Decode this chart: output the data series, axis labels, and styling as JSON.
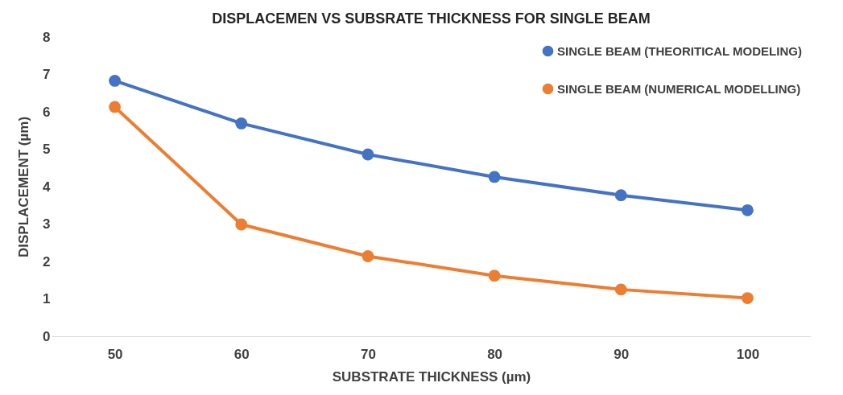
{
  "chart_data": {
    "type": "line",
    "title": "DISPLACEMEN VS SUBSRATE THICKNESS FOR SINGLE BEAM",
    "xlabel": "SUBSTRATE THICKNESS (µm)",
    "ylabel": "DISPLACEMENT (µm)",
    "categories": [
      "50",
      "60",
      "70",
      "80",
      "90",
      "100"
    ],
    "series": [
      {
        "name": "SINGLE BEAM (THEORITICAL MODELING)",
        "color": "#4472c4",
        "values": [
          6.83,
          5.69,
          4.86,
          4.26,
          3.77,
          3.37
        ]
      },
      {
        "name": "SINGLE BEAM (NUMERICAL MODELLING)",
        "color": "#ed7d31",
        "values": [
          6.13,
          2.99,
          2.14,
          1.62,
          1.25,
          1.02
        ]
      }
    ],
    "ylim": [
      0,
      8
    ],
    "yticks": [
      0,
      1,
      2,
      3,
      4,
      5,
      6,
      7,
      8
    ],
    "grid": false,
    "legend": "top right",
    "marker": "circle",
    "line_style": "solid"
  }
}
